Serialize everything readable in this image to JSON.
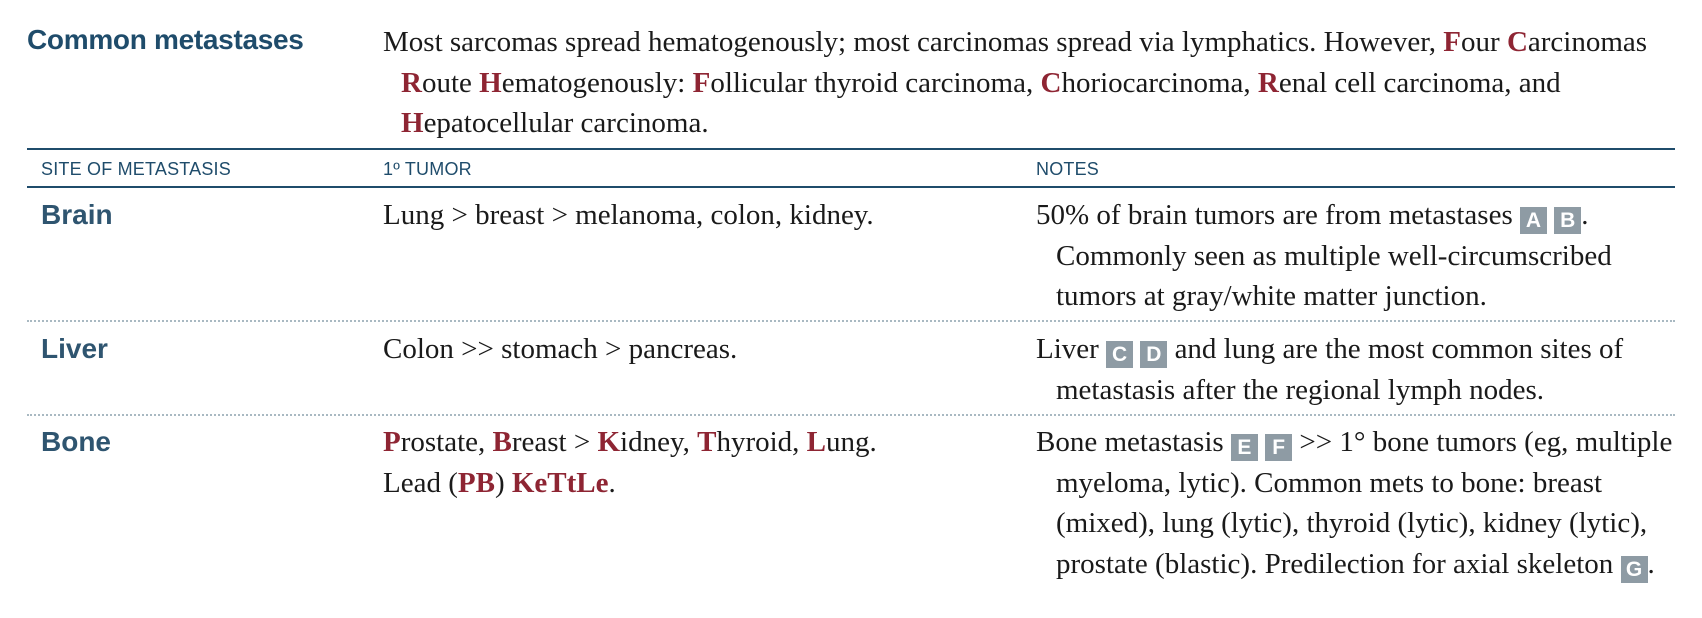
{
  "section": {
    "title": "Common metastases",
    "intro": [
      "Most sarcomas spread hematogenously; most carcinomas spread via lymphatics. However, ",
      {
        "hl": "F"
      },
      "our ",
      {
        "hl": "C"
      },
      "arcinomas ",
      {
        "hl": "R"
      },
      "oute ",
      {
        "hl": "H"
      },
      "ematogenously: ",
      {
        "hl": "F"
      },
      "ollicular thyroid carcinoma, ",
      {
        "hl": "C"
      },
      "horiocarcinoma, ",
      {
        "hl": "R"
      },
      "enal cell carcinoma, and ",
      {
        "hl": "H"
      },
      "epatocellular carcinoma."
    ]
  },
  "table": {
    "columns": {
      "site": "SITE OF METASTASIS",
      "tumor": "1º TUMOR",
      "notes": "NOTES"
    },
    "rows": [
      {
        "site": "Brain",
        "tumor": [
          "Lung > breast > melanoma, colon, kidney."
        ],
        "notes": [
          "50% of brain tumors are from metastases ",
          {
            "badge": "A"
          },
          " ",
          {
            "badge": "B"
          },
          ".",
          {
            "br": true
          },
          "Commonly seen as multiple well-circumscribed tumors at gray/white matter junction."
        ]
      },
      {
        "site": "Liver",
        "tumor": [
          "Colon >> stomach > pancreas."
        ],
        "notes": [
          "Liver ",
          {
            "badge": "C"
          },
          " ",
          {
            "badge": "D"
          },
          " and lung are the most common sites of metastasis after the regional lymph nodes."
        ]
      },
      {
        "site": "Bone",
        "tumor": [
          {
            "hl": "P"
          },
          "rostate, ",
          {
            "hl": "B"
          },
          "reast > ",
          {
            "hl": "K"
          },
          "idney, ",
          {
            "hl": "T"
          },
          "hyroid, ",
          {
            "hl": "L"
          },
          "ung.",
          {
            "br": true
          },
          "Lead (",
          {
            "hl": "PB"
          },
          ") ",
          {
            "hl": "KeTtLe"
          },
          "."
        ],
        "notes": [
          "Bone metastasis ",
          {
            "badge": "E"
          },
          " ",
          {
            "badge": "F"
          },
          " >> 1° bone tumors (eg, multiple myeloma, lytic). Common mets to bone: breast (mixed), lung (lytic), thyroid (lytic), kidney (lytic), prostate (blastic). Predilection for axial skeleton ",
          {
            "badge": "G"
          },
          "."
        ]
      }
    ]
  }
}
